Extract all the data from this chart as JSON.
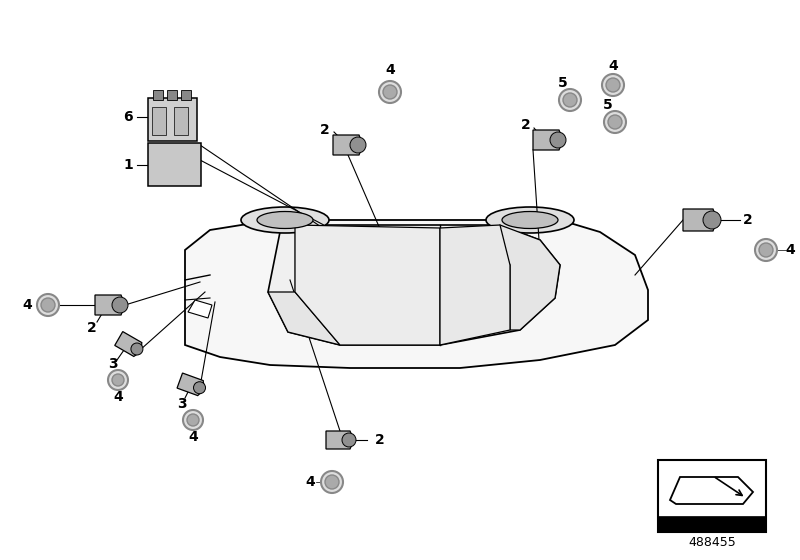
{
  "background_color": "#ffffff",
  "figure_number": "488455",
  "car_body_color": "#f5f5f5",
  "car_edge_color": "#000000",
  "sensor_color": "#b8b8b8",
  "ring_color": "#888888",
  "ecu_color": "#cccccc",
  "connector_color": "#d8d8d8",
  "label_fontsize": 10,
  "line_color": "#000000"
}
